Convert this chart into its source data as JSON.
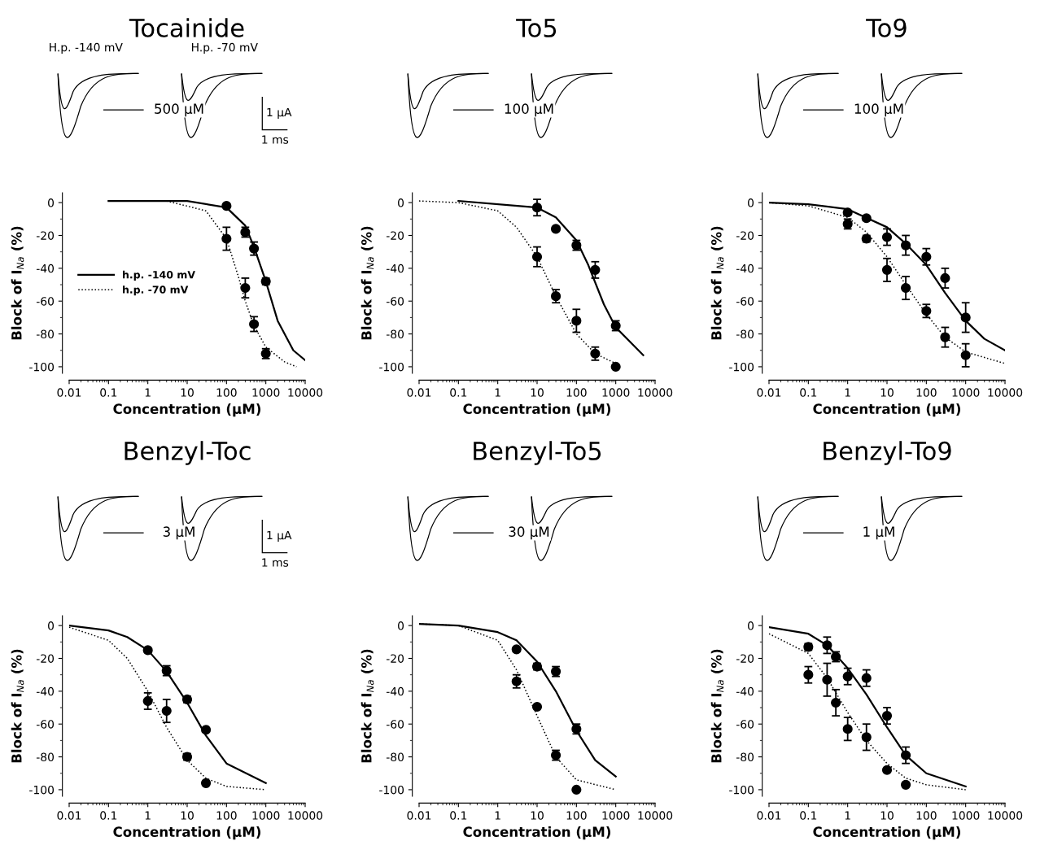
{
  "chart_data": [
    {
      "type": "scatter",
      "title": "Tocainide",
      "xlabel": "Concentration (µM)",
      "ylabel": "Block of I$_{Na}$ (%)",
      "log": "x",
      "xlim": [
        0.01,
        10000
      ],
      "xticks": [
        0.01,
        0.1,
        1,
        10,
        100,
        1000,
        10000
      ],
      "ylim": [
        -104,
        6
      ],
      "yticks": [
        -100,
        -80,
        -60,
        -40,
        -20,
        0
      ],
      "grid": false,
      "marker": "circle",
      "legend": "center left",
      "annotations": [
        "500 µM",
        "H.p. -140 mV",
        "H.p. -70 mV",
        "1 µA",
        "1 ms"
      ],
      "series": [
        {
          "type": "line",
          "name": "h.p. -140 mV",
          "color": "#000000",
          "marker": "none",
          "line_style": "solid",
          "x": [
            0.1,
            10,
            100,
            300,
            500,
            1000,
            2000,
            5000,
            10000
          ],
          "values": [
            1,
            1,
            -3,
            -14,
            -27,
            -48,
            -72,
            -90,
            -96
          ]
        },
        {
          "type": "line",
          "name": "h.p. -70 mV",
          "color": "#000000",
          "marker": "none",
          "line_style": "dotted",
          "x": [
            3,
            30,
            100,
            200,
            300,
            500,
            1000,
            3000,
            6000
          ],
          "values": [
            1,
            -5,
            -22,
            -45,
            -60,
            -75,
            -88,
            -97,
            -100
          ]
        },
        {
          "type": "scatter",
          "color": "#000000",
          "x": [
            100,
            300,
            500,
            1000
          ],
          "values": [
            -2,
            -18,
            -28,
            -48
          ],
          "errors": [
            null,
            3,
            4,
            2
          ]
        },
        {
          "type": "scatter",
          "color": "#000000",
          "x": [
            100,
            300,
            500,
            1000
          ],
          "values": [
            -22,
            -52,
            -74,
            -92
          ],
          "errors": [
            7,
            6,
            4.5,
            3
          ]
        }
      ]
    },
    {
      "type": "scatter",
      "title": "To5",
      "xlabel": "Concentration (µM)",
      "ylabel": "Block of I$_{Na}$ (%)",
      "log": "x",
      "xlim": [
        0.01,
        10000
      ],
      "xticks": [
        0.01,
        0.1,
        1,
        10,
        100,
        1000,
        10000
      ],
      "ylim": [
        -104,
        6
      ],
      "yticks": [
        -100,
        -80,
        -60,
        -40,
        -20,
        0
      ],
      "grid": false,
      "marker": "circle",
      "annotations": [
        "100 µM"
      ],
      "series": [
        {
          "type": "line",
          "color": "#000000",
          "marker": "none",
          "line_style": "solid",
          "x": [
            0.1,
            10,
            30,
            100,
            200,
            500,
            1000,
            5000
          ],
          "values": [
            1,
            -3,
            -9,
            -23,
            -38,
            -62,
            -76,
            -93
          ]
        },
        {
          "type": "line",
          "color": "#000000",
          "marker": "none",
          "line_style": "dotted",
          "x": [
            0.01,
            0.1,
            1,
            3,
            10,
            30,
            100,
            300,
            1000
          ],
          "values": [
            1,
            0,
            -5,
            -15,
            -33,
            -57,
            -80,
            -92,
            -98
          ]
        },
        {
          "type": "scatter",
          "color": "#000000",
          "x": [
            10,
            30,
            100,
            300,
            1000
          ],
          "values": [
            -3,
            -16,
            -26,
            -41,
            -75
          ],
          "errors": [
            5,
            null,
            3,
            5,
            3
          ]
        },
        {
          "type": "scatter",
          "color": "#000000",
          "x": [
            10,
            30,
            100,
            300,
            1000
          ],
          "values": [
            -33,
            -57,
            -72,
            -92,
            -100
          ],
          "errors": [
            6,
            4,
            7,
            4,
            null
          ]
        }
      ]
    },
    {
      "type": "scatter",
      "title": "To9",
      "xlabel": "Concentration (µM)",
      "ylabel": "Block of I$_{Na}$ (%)",
      "log": "x",
      "xlim": [
        0.01,
        10000
      ],
      "xticks": [
        0.01,
        0.1,
        1,
        10,
        100,
        1000,
        10000
      ],
      "ylim": [
        -104,
        6
      ],
      "yticks": [
        -100,
        -80,
        -60,
        -40,
        -20,
        0
      ],
      "grid": false,
      "marker": "circle",
      "annotations": [
        "100 µM"
      ],
      "series": [
        {
          "type": "line",
          "color": "#000000",
          "marker": "none",
          "line_style": "solid",
          "x": [
            0.01,
            0.1,
            1,
            10,
            30,
            100,
            300,
            1000,
            3000,
            10000
          ],
          "values": [
            0,
            -1,
            -4,
            -15,
            -25,
            -38,
            -55,
            -72,
            -83,
            -90
          ]
        },
        {
          "type": "line",
          "color": "#000000",
          "marker": "none",
          "line_style": "dotted",
          "x": [
            0.01,
            0.1,
            1,
            3,
            10,
            30,
            100,
            300,
            1000,
            10000
          ],
          "values": [
            0,
            -2,
            -9,
            -18,
            -33,
            -50,
            -68,
            -82,
            -91,
            -98
          ]
        },
        {
          "type": "scatter",
          "color": "#000000",
          "x": [
            1,
            3,
            10,
            30,
            100,
            300,
            1000
          ],
          "values": [
            -6,
            -9.5,
            -21,
            -26,
            -33,
            -46,
            -70
          ],
          "errors": [
            null,
            null,
            5,
            6,
            5,
            6,
            9
          ]
        },
        {
          "type": "scatter",
          "color": "#000000",
          "x": [
            1,
            3,
            10,
            30,
            100,
            300,
            1000
          ],
          "values": [
            -13,
            -22,
            -41,
            -52,
            -66,
            -82,
            -93
          ],
          "errors": [
            3,
            2,
            7,
            7,
            4,
            6,
            7
          ]
        }
      ]
    },
    {
      "type": "scatter",
      "title": "Benzyl-Toc",
      "xlabel": "Concentration (µM)",
      "ylabel": "Block of I$_{Na}$ (%)",
      "log": "x",
      "xlim": [
        0.01,
        10000
      ],
      "xticks": [
        0.01,
        0.1,
        1,
        10,
        100,
        1000,
        10000
      ],
      "ylim": [
        -104,
        6
      ],
      "yticks": [
        -100,
        -80,
        -60,
        -40,
        -20,
        0
      ],
      "grid": false,
      "marker": "circle",
      "annotations": [
        "3 µM",
        "1 µA",
        "1 ms"
      ],
      "series": [
        {
          "type": "line",
          "color": "#000000",
          "marker": "none",
          "line_style": "solid",
          "x": [
            0.01,
            0.1,
            0.3,
            1,
            3,
            10,
            30,
            100,
            1000
          ],
          "values": [
            0,
            -3,
            -7,
            -15,
            -28,
            -47,
            -67,
            -84,
            -96
          ]
        },
        {
          "type": "line",
          "color": "#000000",
          "marker": "none",
          "line_style": "dotted",
          "x": [
            0.01,
            0.1,
            0.3,
            1,
            3,
            10,
            30,
            100,
            1000
          ],
          "values": [
            -1,
            -9,
            -20,
            -40,
            -62,
            -82,
            -93,
            -98,
            -100
          ]
        },
        {
          "type": "scatter",
          "color": "#000000",
          "x": [
            1,
            3,
            10,
            30
          ],
          "values": [
            -15,
            -27.5,
            -45,
            -63.5
          ],
          "errors": [
            null,
            3,
            2,
            null
          ]
        },
        {
          "type": "scatter",
          "color": "#000000",
          "x": [
            1,
            3,
            10,
            30
          ],
          "values": [
            -46,
            -52,
            -80,
            -96
          ],
          "errors": [
            5,
            7,
            2,
            null
          ]
        }
      ]
    },
    {
      "type": "scatter",
      "title": "Benzyl-To5",
      "xlabel": "Concentration (µM)",
      "ylabel": "Block of I$_{Na}$ (%)",
      "log": "x",
      "xlim": [
        0.01,
        10000
      ],
      "xticks": [
        0.01,
        0.1,
        1,
        10,
        100,
        1000,
        10000
      ],
      "ylim": [
        -104,
        6
      ],
      "yticks": [
        -100,
        -80,
        -60,
        -40,
        -20,
        0
      ],
      "grid": false,
      "marker": "circle",
      "annotations": [
        "30 µM"
      ],
      "series": [
        {
          "type": "line",
          "color": "#000000",
          "marker": "none",
          "line_style": "solid",
          "x": [
            0.01,
            0.1,
            1,
            3,
            10,
            30,
            100,
            300,
            1000
          ],
          "values": [
            1,
            0,
            -4,
            -9,
            -22,
            -40,
            -64,
            -82,
            -92
          ]
        },
        {
          "type": "line",
          "color": "#000000",
          "marker": "none",
          "line_style": "dotted",
          "x": [
            0.01,
            0.1,
            1,
            3,
            10,
            30,
            100,
            1000
          ],
          "values": [
            1,
            0,
            -9,
            -27,
            -55,
            -80,
            -94,
            -100
          ]
        },
        {
          "type": "scatter",
          "color": "#000000",
          "x": [
            3,
            10,
            30,
            100
          ],
          "values": [
            -14.5,
            -25,
            -28,
            -63
          ],
          "errors": [
            null,
            2,
            3,
            3
          ]
        },
        {
          "type": "scatter",
          "color": "#000000",
          "x": [
            3,
            10,
            30,
            100
          ],
          "values": [
            -34,
            -49.5,
            -79,
            -100
          ],
          "errors": [
            4,
            null,
            3,
            null
          ]
        }
      ]
    },
    {
      "type": "scatter",
      "title": "Benzyl-To9",
      "xlabel": "Concentration (µM)",
      "ylabel": "Block of I$_{Na}$ (%)",
      "log": "x",
      "xlim": [
        0.01,
        10000
      ],
      "xticks": [
        0.01,
        0.1,
        1,
        10,
        100,
        1000,
        10000
      ],
      "ylim": [
        -104,
        6
      ],
      "yticks": [
        -100,
        -80,
        -60,
        -40,
        -20,
        0
      ],
      "grid": false,
      "marker": "circle",
      "annotations": [
        "1 µM"
      ],
      "series": [
        {
          "type": "line",
          "color": "#000000",
          "marker": "none",
          "line_style": "solid",
          "x": [
            0.01,
            0.1,
            0.3,
            1,
            3,
            10,
            30,
            100,
            1000
          ],
          "values": [
            -1,
            -5,
            -12,
            -26,
            -42,
            -62,
            -79,
            -90,
            -98
          ]
        },
        {
          "type": "line",
          "color": "#000000",
          "marker": "none",
          "line_style": "dotted",
          "x": [
            0.01,
            0.1,
            0.3,
            1,
            3,
            10,
            30,
            100,
            1000
          ],
          "values": [
            -5,
            -17,
            -32,
            -53,
            -70,
            -84,
            -93,
            -97,
            -100
          ]
        },
        {
          "type": "scatter",
          "color": "#000000",
          "x": [
            0.1,
            0.3,
            0.5,
            1,
            3,
            10,
            30
          ],
          "values": [
            -13,
            -12,
            -19,
            -31,
            -32,
            -55,
            -79
          ],
          "errors": [
            2,
            5,
            3,
            5,
            5,
            5,
            5
          ]
        },
        {
          "type": "scatter",
          "color": "#000000",
          "x": [
            0.1,
            0.3,
            0.5,
            1,
            3,
            10,
            30
          ],
          "values": [
            -30,
            -33,
            -47,
            -63,
            -68,
            -88,
            -97
          ],
          "errors": [
            5,
            10,
            8,
            7,
            8,
            null,
            null
          ]
        }
      ]
    }
  ]
}
